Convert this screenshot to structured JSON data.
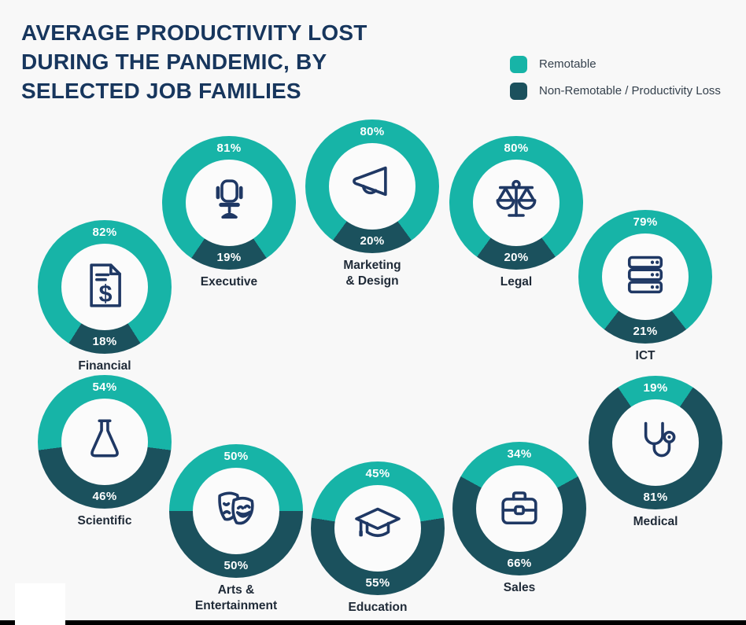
{
  "chart_data": {
    "type": "pie",
    "subtype": "donut-multiples",
    "title": "AVERAGE PRODUCTIVITY LOST\nDURING THE PANDEMIC, BY\nSELECTED JOB FAMILIES",
    "legend_position": "top-right",
    "legend": [
      {
        "label": "Remotable",
        "color": "#17b4a7"
      },
      {
        "label": "Non-Remotable / Productivity Loss",
        "color": "#1b515d"
      }
    ],
    "colors": {
      "remotable": "#17b4a7",
      "non_remotable": "#1b515d"
    },
    "unit": "%",
    "series": [
      {
        "category": "Financial",
        "remotable": 82,
        "non_remotable": 18,
        "icon": "invoice-icon"
      },
      {
        "category": "Executive",
        "remotable": 81,
        "non_remotable": 19,
        "icon": "office-chair-icon"
      },
      {
        "category": "Marketing\n& Design",
        "remotable": 80,
        "non_remotable": 20,
        "icon": "megaphone-icon"
      },
      {
        "category": "Legal",
        "remotable": 80,
        "non_remotable": 20,
        "icon": "scales-icon"
      },
      {
        "category": "ICT",
        "remotable": 79,
        "non_remotable": 21,
        "icon": "server-icon"
      },
      {
        "category": "Scientific",
        "remotable": 54,
        "non_remotable": 46,
        "icon": "flask-icon"
      },
      {
        "category": "Medical",
        "remotable": 19,
        "non_remotable": 81,
        "icon": "stethoscope-icon"
      },
      {
        "category": "Arts &\nEntertainment",
        "remotable": 50,
        "non_remotable": 50,
        "icon": "theater-masks-icon"
      },
      {
        "category": "Education",
        "remotable": 45,
        "non_remotable": 55,
        "icon": "graduation-cap-icon"
      },
      {
        "category": "Sales",
        "remotable": 34,
        "non_remotable": 66,
        "icon": "briefcase-icon"
      }
    ]
  }
}
